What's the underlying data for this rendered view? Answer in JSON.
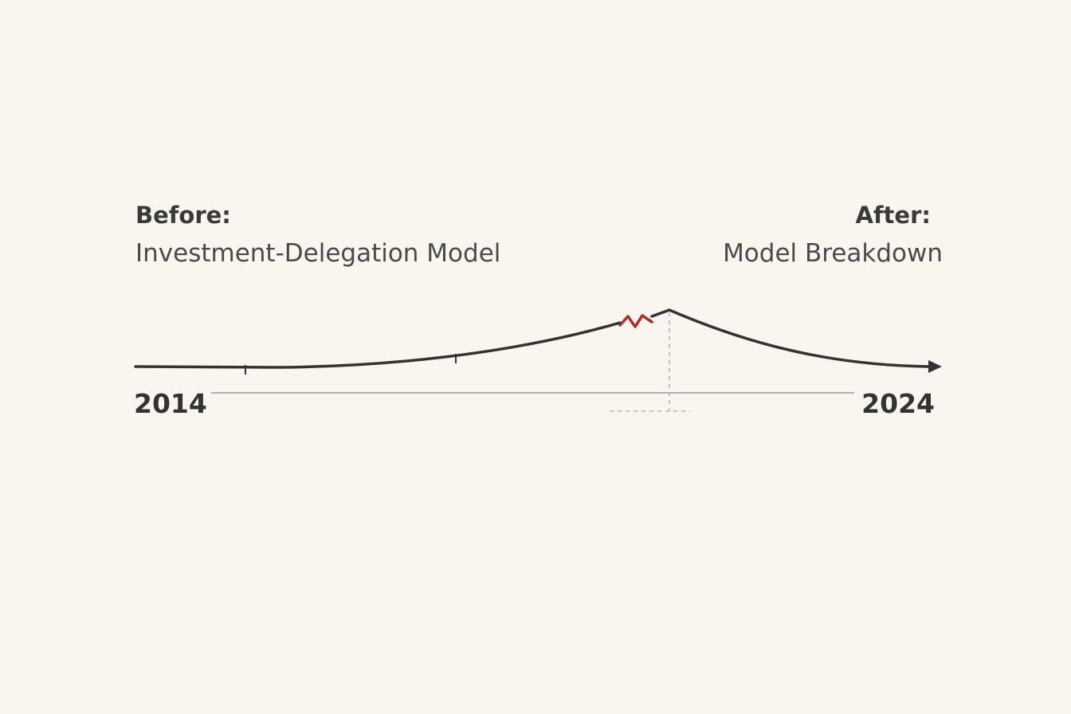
{
  "before": {
    "label": "Before:",
    "title": "Investment-Delegation Model"
  },
  "after": {
    "label": "After:",
    "title": "Model Breakdown"
  },
  "timeline": {
    "start": "2014",
    "end": "2024"
  }
}
